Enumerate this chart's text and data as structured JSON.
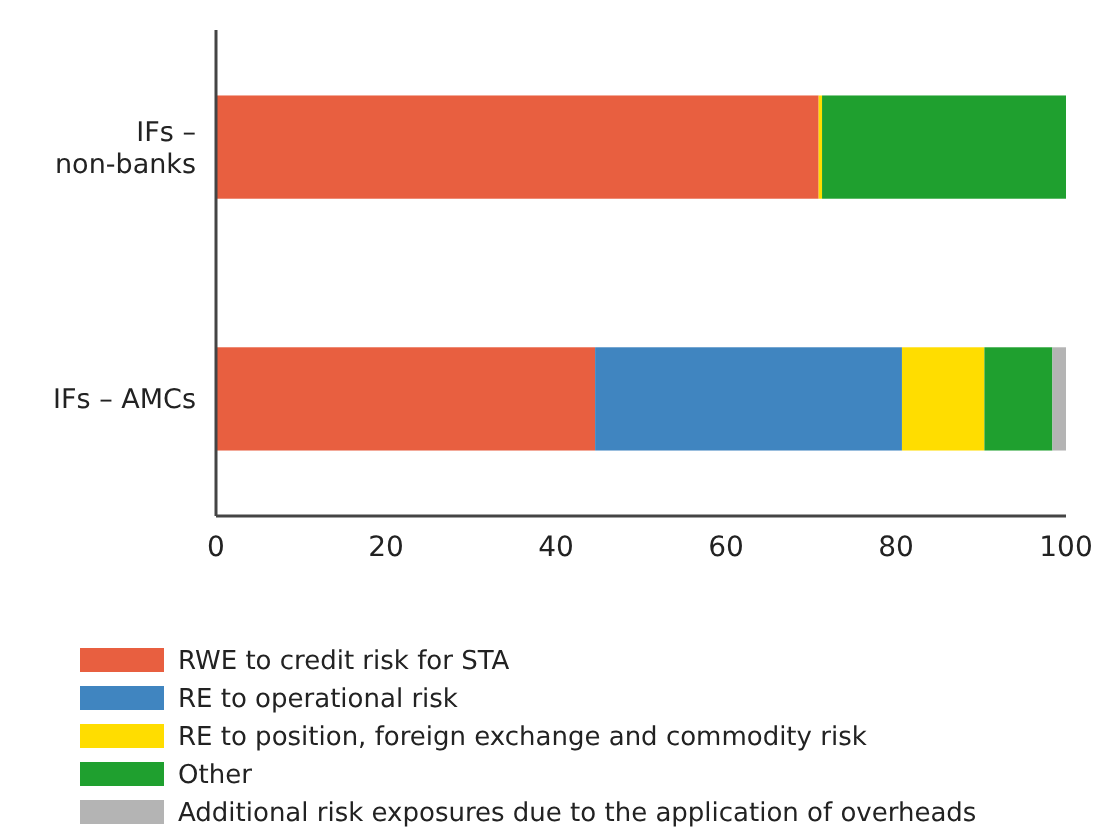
{
  "chart_data": {
    "type": "bar",
    "orientation": "horizontal",
    "stacked": true,
    "categories": [
      "IFs –\nnon-banks",
      "IFs – AMCs"
    ],
    "series": [
      {
        "name": "RWE to credit risk for STA",
        "color": "#e85f40",
        "values": [
          70.9,
          44.6
        ]
      },
      {
        "name": "RE to operational risk",
        "color": "#4085c0",
        "values": [
          0,
          36.1
        ]
      },
      {
        "name": "RE to position, foreign exchange and commodity risk",
        "color": "#ffdd00",
        "values": [
          0.4,
          9.7
        ]
      },
      {
        "name": "Other",
        "color": "#1fa02f",
        "values": [
          28.7,
          8.0
        ]
      },
      {
        "name": "Additional risk exposures due to the application of overheads",
        "color": "#b4b4b4",
        "values": [
          0,
          1.6
        ]
      }
    ],
    "xlim": [
      0,
      100
    ],
    "xticks": [
      0,
      20,
      40,
      60,
      80,
      100
    ],
    "grid": false,
    "legend": "bottom"
  }
}
